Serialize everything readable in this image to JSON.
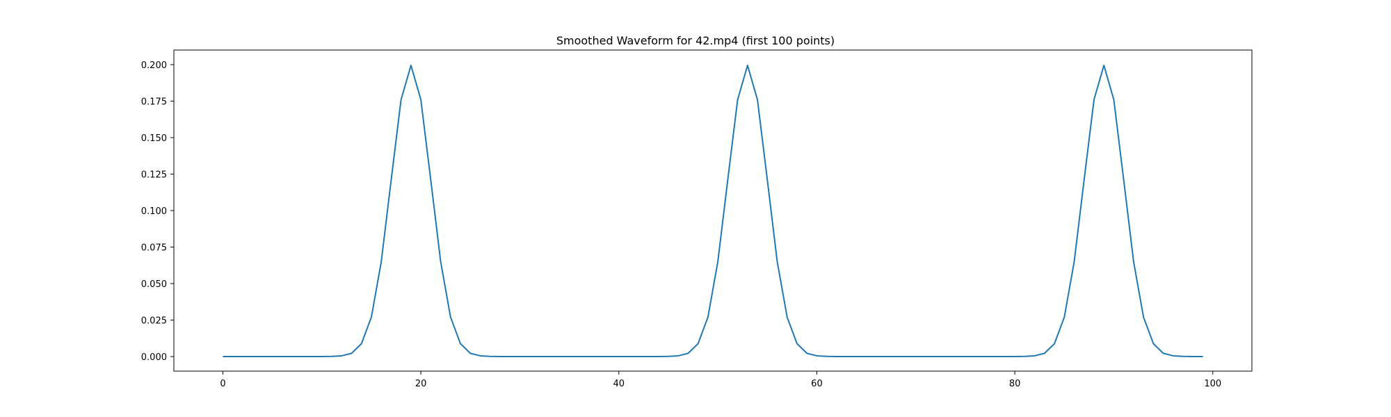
{
  "chart_data": {
    "type": "line",
    "title": "Smoothed Waveform for 42.mp4 (first 100 points)",
    "xlabel": "",
    "ylabel": "",
    "xlim": [
      -4.95,
      103.95
    ],
    "ylim": [
      -0.01,
      0.21
    ],
    "xticks": [
      0,
      20,
      40,
      60,
      80,
      100
    ],
    "xtick_labels": [
      "0",
      "20",
      "40",
      "60",
      "80",
      "100"
    ],
    "yticks": [
      0.0,
      0.025,
      0.05,
      0.075,
      0.1,
      0.125,
      0.15,
      0.175,
      0.2
    ],
    "ytick_labels": [
      "0.000",
      "0.025",
      "0.050",
      "0.075",
      "0.100",
      "0.125",
      "0.150",
      "0.175",
      "0.200"
    ],
    "grid": false,
    "legend": "none",
    "series": [
      {
        "color": "#1f77b4",
        "x": [
          0,
          1,
          2,
          3,
          4,
          5,
          6,
          7,
          8,
          9,
          10,
          11,
          12,
          13,
          14,
          15,
          16,
          17,
          18,
          19,
          20,
          21,
          22,
          23,
          24,
          25,
          26,
          27,
          28,
          29,
          30,
          31,
          32,
          33,
          34,
          35,
          36,
          37,
          38,
          39,
          40,
          41,
          42,
          43,
          44,
          45,
          46,
          47,
          48,
          49,
          50,
          51,
          52,
          53,
          54,
          55,
          56,
          57,
          58,
          59,
          60,
          61,
          62,
          63,
          64,
          65,
          66,
          67,
          68,
          69,
          70,
          71,
          72,
          73,
          74,
          75,
          76,
          77,
          78,
          79,
          80,
          81,
          82,
          83,
          84,
          85,
          86,
          87,
          88,
          89,
          90,
          91,
          92,
          93,
          94,
          95,
          96,
          97,
          98,
          99
        ],
        "y": [
          0,
          0,
          0,
          0,
          0,
          0,
          0,
          0,
          0,
          0,
          0,
          0.0001,
          0.0005,
          0.0022,
          0.0088,
          0.027,
          0.065,
          0.121,
          0.176,
          0.1995,
          0.176,
          0.121,
          0.065,
          0.027,
          0.0088,
          0.0022,
          0.0005,
          0.0001,
          0,
          0,
          0,
          0,
          0,
          0,
          0,
          0,
          0,
          0,
          0,
          0,
          0,
          0,
          0,
          0,
          0,
          0.0001,
          0.0005,
          0.0022,
          0.0088,
          0.027,
          0.065,
          0.121,
          0.176,
          0.1995,
          0.176,
          0.121,
          0.065,
          0.027,
          0.0088,
          0.0022,
          0.0005,
          0.0001,
          0,
          0,
          0,
          0,
          0,
          0,
          0,
          0,
          0,
          0,
          0,
          0,
          0,
          0,
          0,
          0,
          0,
          0,
          0,
          0.0001,
          0.0005,
          0.0022,
          0.0088,
          0.027,
          0.065,
          0.121,
          0.176,
          0.1995,
          0.176,
          0.121,
          0.065,
          0.027,
          0.0088,
          0.0022,
          0.0005,
          0.0001,
          0,
          0
        ]
      }
    ]
  }
}
